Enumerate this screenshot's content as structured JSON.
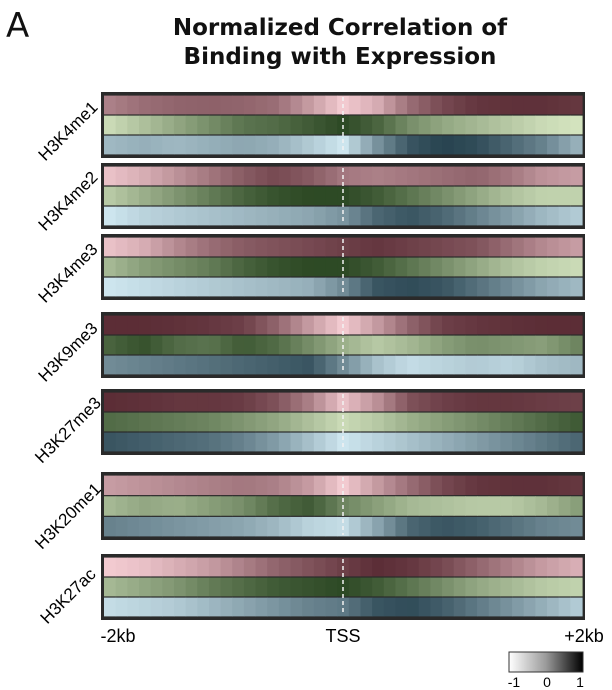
{
  "panel_letter": "A",
  "chart_data": {
    "type": "heatmap",
    "title_lines": [
      "Normalized Correlation of",
      "Binding with Expression"
    ],
    "x_tick_labels": [
      "-2kb",
      "TSS",
      "+2kb"
    ],
    "x_range_kb": [
      -2,
      2
    ],
    "bins_per_row": 41,
    "tss_marker": "dashed line at TSS",
    "colorbar": {
      "labels": [
        "-1",
        "0",
        "1"
      ],
      "range": [
        -1,
        1
      ]
    },
    "row_palettes": [
      {
        "lo": "#fbd3d9",
        "hi": "#4a1b24"
      },
      {
        "lo": "#dcebc7",
        "hi": "#24411c"
      },
      {
        "lo": "#d6eef7",
        "hi": "#1e3a47"
      }
    ],
    "groups": [
      {
        "name": "H3K4me1",
        "rows": [
          {
            "anchors": [
              0.45,
              0.55,
              0.6,
              0.62,
              0.6,
              0.55,
              0.3,
              0.05,
              0.2,
              0.55,
              0.75,
              0.85,
              0.88,
              0.88,
              0.85
            ]
          },
          {
            "anchors": [
              0.1,
              0.25,
              0.4,
              0.55,
              0.7,
              0.75,
              0.85,
              0.95,
              0.8,
              0.55,
              0.4,
              0.3,
              0.2,
              0.1,
              0.05
            ]
          },
          {
            "anchors": [
              0.3,
              0.35,
              0.3,
              0.35,
              0.4,
              0.35,
              0.2,
              0.05,
              0.5,
              0.85,
              0.95,
              0.9,
              0.75,
              0.6,
              0.35
            ]
          }
        ]
      },
      {
        "name": "H3K4me2",
        "rows": [
          {
            "anchors": [
              0.1,
              0.2,
              0.35,
              0.5,
              0.65,
              0.75,
              0.65,
              0.5,
              0.45,
              0.5,
              0.55,
              0.6,
              0.5,
              0.35,
              0.3
            ]
          },
          {
            "anchors": [
              0.2,
              0.35,
              0.5,
              0.65,
              0.8,
              0.9,
              0.95,
              0.95,
              0.85,
              0.7,
              0.55,
              0.4,
              0.25,
              0.15,
              0.15
            ]
          },
          {
            "anchors": [
              0.05,
              0.15,
              0.2,
              0.25,
              0.3,
              0.35,
              0.4,
              0.5,
              0.75,
              0.85,
              0.75,
              0.6,
              0.45,
              0.3,
              0.2
            ]
          }
        ]
      },
      {
        "name": "H3K4me3",
        "rows": [
          {
            "anchors": [
              0.1,
              0.2,
              0.4,
              0.55,
              0.65,
              0.7,
              0.75,
              0.8,
              0.85,
              0.8,
              0.75,
              0.7,
              0.55,
              0.4,
              0.3
            ]
          },
          {
            "anchors": [
              0.3,
              0.45,
              0.55,
              0.65,
              0.8,
              0.9,
              0.95,
              0.95,
              0.85,
              0.7,
              0.55,
              0.4,
              0.25,
              0.15,
              0.1
            ]
          },
          {
            "anchors": [
              0.05,
              0.1,
              0.15,
              0.2,
              0.25,
              0.3,
              0.35,
              0.55,
              0.85,
              0.9,
              0.85,
              0.7,
              0.55,
              0.4,
              0.3
            ]
          }
        ]
      },
      {
        "name": "H3K9me3",
        "rows": [
          {
            "anchors": [
              0.9,
              0.9,
              0.88,
              0.85,
              0.8,
              0.6,
              0.3,
              0.05,
              0.3,
              0.6,
              0.8,
              0.85,
              0.88,
              0.9,
              0.9
            ]
          },
          {
            "anchors": [
              0.8,
              0.9,
              0.75,
              0.7,
              0.85,
              0.75,
              0.55,
              0.35,
              0.2,
              0.3,
              0.45,
              0.55,
              0.5,
              0.45,
              0.6
            ]
          },
          {
            "anchors": [
              0.55,
              0.6,
              0.65,
              0.7,
              0.75,
              0.8,
              0.85,
              0.55,
              0.25,
              0.1,
              0.15,
              0.2,
              0.15,
              0.25,
              0.3
            ]
          }
        ]
      },
      {
        "name": "H3K27me3",
        "rows": [
          {
            "anchors": [
              0.9,
              0.88,
              0.85,
              0.85,
              0.82,
              0.7,
              0.45,
              0.1,
              0.35,
              0.7,
              0.8,
              0.85,
              0.85,
              0.82,
              0.8
            ]
          },
          {
            "anchors": [
              0.75,
              0.7,
              0.65,
              0.6,
              0.5,
              0.4,
              0.25,
              0.1,
              0.2,
              0.35,
              0.45,
              0.55,
              0.65,
              0.75,
              0.85
            ]
          },
          {
            "anchors": [
              0.85,
              0.8,
              0.75,
              0.7,
              0.6,
              0.45,
              0.25,
              0.05,
              0.15,
              0.25,
              0.35,
              0.45,
              0.55,
              0.65,
              0.75
            ]
          }
        ]
      },
      {
        "name": "H3K20me1",
        "rows": [
          {
            "anchors": [
              0.3,
              0.35,
              0.4,
              0.45,
              0.5,
              0.45,
              0.3,
              0.05,
              0.3,
              0.55,
              0.75,
              0.85,
              0.88,
              0.88,
              0.85
            ]
          },
          {
            "anchors": [
              0.3,
              0.4,
              0.35,
              0.45,
              0.55,
              0.75,
              0.85,
              0.6,
              0.45,
              0.3,
              0.25,
              0.2,
              0.2,
              0.3,
              0.45
            ]
          },
          {
            "anchors": [
              0.6,
              0.55,
              0.5,
              0.45,
              0.4,
              0.3,
              0.15,
              0.1,
              0.4,
              0.75,
              0.85,
              0.8,
              0.7,
              0.6,
              0.55
            ]
          }
        ]
      },
      {
        "name": "H3K27ac",
        "rows": [
          {
            "anchors": [
              0.05,
              0.1,
              0.2,
              0.3,
              0.45,
              0.6,
              0.7,
              0.8,
              0.9,
              0.85,
              0.75,
              0.6,
              0.45,
              0.3,
              0.2
            ]
          },
          {
            "anchors": [
              0.3,
              0.4,
              0.5,
              0.65,
              0.75,
              0.85,
              0.9,
              0.95,
              0.85,
              0.7,
              0.55,
              0.4,
              0.3,
              0.2,
              0.15
            ]
          },
          {
            "anchors": [
              0.1,
              0.15,
              0.2,
              0.3,
              0.4,
              0.5,
              0.6,
              0.65,
              0.85,
              0.9,
              0.8,
              0.65,
              0.5,
              0.35,
              0.2
            ]
          }
        ]
      }
    ]
  }
}
